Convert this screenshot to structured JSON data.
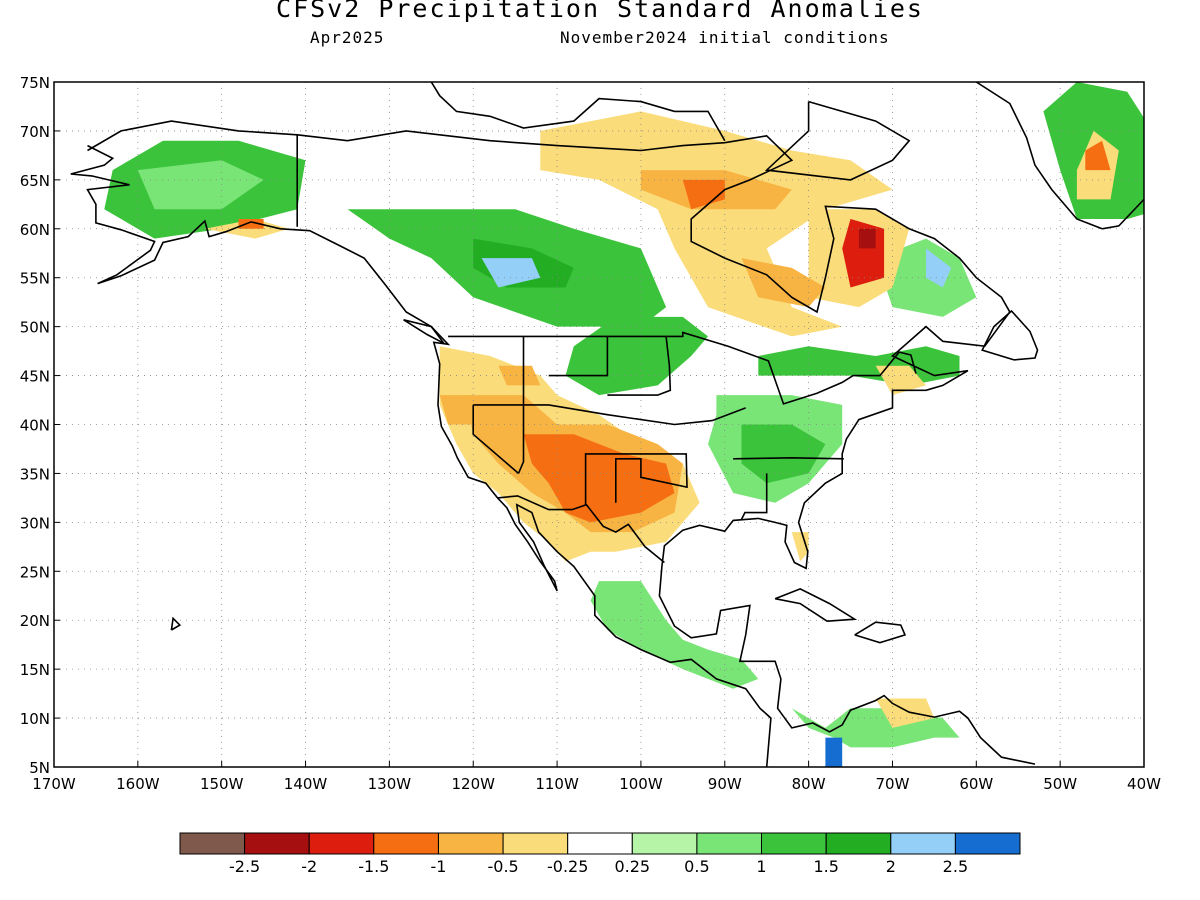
{
  "title": "CFSv2 Precipitation Standard Anomalies",
  "valid_month": "Apr2025",
  "initial_conditions": "November2024 initial conditions",
  "map": {
    "lon_range": [
      -170,
      -40
    ],
    "lat_range": [
      5,
      75
    ],
    "lon_ticks": [
      {
        "value": -170,
        "label": "170W"
      },
      {
        "value": -160,
        "label": "160W"
      },
      {
        "value": -150,
        "label": "150W"
      },
      {
        "value": -140,
        "label": "140W"
      },
      {
        "value": -130,
        "label": "130W"
      },
      {
        "value": -120,
        "label": "120W"
      },
      {
        "value": -110,
        "label": "110W"
      },
      {
        "value": -100,
        "label": "100W"
      },
      {
        "value": -90,
        "label": "90W"
      },
      {
        "value": -80,
        "label": "80W"
      },
      {
        "value": -70,
        "label": "70W"
      },
      {
        "value": -60,
        "label": "60W"
      },
      {
        "value": -50,
        "label": "50W"
      },
      {
        "value": -40,
        "label": "40W"
      }
    ],
    "lat_ticks": [
      {
        "value": 5,
        "label": "5N"
      },
      {
        "value": 10,
        "label": "10N"
      },
      {
        "value": 15,
        "label": "15N"
      },
      {
        "value": 20,
        "label": "20N"
      },
      {
        "value": 25,
        "label": "25N"
      },
      {
        "value": 30,
        "label": "30N"
      },
      {
        "value": 35,
        "label": "35N"
      },
      {
        "value": 40,
        "label": "40N"
      },
      {
        "value": 45,
        "label": "45N"
      },
      {
        "value": 50,
        "label": "50N"
      },
      {
        "value": 55,
        "label": "55N"
      },
      {
        "value": 60,
        "label": "60N"
      },
      {
        "value": 65,
        "label": "65N"
      },
      {
        "value": 70,
        "label": "70N"
      },
      {
        "value": 75,
        "label": "75N"
      }
    ],
    "land_color": "#ffffff",
    "coast_color": "#000000"
  },
  "legend": {
    "colors": [
      "#7f5a4c",
      "#a50f0f",
      "#dd1e0f",
      "#f66e12",
      "#f8b443",
      "#fbdc7a",
      "#ffffff",
      "#b6f5a8",
      "#7ae577",
      "#3bc33b",
      "#22ad22",
      "#94cff7",
      "#166dd1"
    ],
    "labels": [
      "-2.5",
      "-2",
      "-1.5",
      "-1",
      "-0.5",
      "-0.25",
      "0.25",
      "0.5",
      "1",
      "1.5",
      "2",
      "2.5"
    ]
  },
  "anomaly_regions": [
    {
      "level": 9,
      "points": [
        [
          -163,
          66
        ],
        [
          -157,
          69
        ],
        [
          -148,
          69
        ],
        [
          -140,
          67
        ],
        [
          -141,
          62
        ],
        [
          -150,
          60
        ],
        [
          -158,
          59
        ],
        [
          -164,
          62
        ]
      ]
    },
    {
      "level": 8,
      "points": [
        [
          -160,
          66
        ],
        [
          -150,
          67
        ],
        [
          -145,
          65
        ],
        [
          -150,
          62
        ],
        [
          -158,
          62
        ]
      ]
    },
    {
      "level": 9,
      "points": [
        [
          -135,
          62
        ],
        [
          -125,
          62
        ],
        [
          -115,
          62
        ],
        [
          -108,
          60
        ],
        [
          -100,
          58
        ],
        [
          -97,
          52
        ],
        [
          -100,
          50
        ],
        [
          -110,
          50
        ],
        [
          -120,
          53
        ],
        [
          -125,
          57
        ],
        [
          -130,
          59
        ]
      ]
    },
    {
      "level": 10,
      "points": [
        [
          -120,
          59
        ],
        [
          -113,
          58
        ],
        [
          -108,
          56
        ],
        [
          -109,
          54
        ],
        [
          -116,
          54
        ],
        [
          -120,
          56
        ]
      ]
    },
    {
      "level": 11,
      "points": [
        [
          -119,
          57
        ],
        [
          -113,
          57
        ],
        [
          -112,
          55
        ],
        [
          -117,
          54
        ]
      ]
    },
    {
      "level": 9,
      "points": [
        [
          -103,
          51
        ],
        [
          -95,
          51
        ],
        [
          -92,
          49
        ],
        [
          -94,
          47
        ],
        [
          -98,
          44
        ],
        [
          -105,
          43
        ],
        [
          -109,
          45
        ],
        [
          -108,
          48
        ]
      ]
    },
    {
      "level": 8,
      "points": [
        [
          -91,
          43
        ],
        [
          -82,
          43
        ],
        [
          -76,
          42
        ],
        [
          -76,
          38
        ],
        [
          -80,
          34
        ],
        [
          -84,
          32
        ],
        [
          -89,
          33
        ],
        [
          -92,
          38
        ],
        [
          -91,
          41
        ]
      ]
    },
    {
      "level": 9,
      "points": [
        [
          -88,
          40
        ],
        [
          -82,
          40
        ],
        [
          -78,
          38
        ],
        [
          -80,
          35
        ],
        [
          -85,
          34
        ],
        [
          -88,
          36
        ]
      ]
    },
    {
      "level": 9,
      "points": [
        [
          -86,
          47
        ],
        [
          -80,
          48
        ],
        [
          -72,
          47
        ],
        [
          -66,
          48
        ],
        [
          -62,
          47
        ],
        [
          -62,
          45
        ],
        [
          -68,
          44
        ],
        [
          -75,
          45
        ],
        [
          -82,
          45
        ],
        [
          -86,
          45
        ]
      ]
    },
    {
      "level": 8,
      "points": [
        [
          -72,
          57
        ],
        [
          -66,
          59
        ],
        [
          -62,
          57
        ],
        [
          -60,
          53
        ],
        [
          -64,
          51
        ],
        [
          -70,
          52
        ]
      ]
    },
    {
      "level": 11,
      "points": [
        [
          -66,
          58
        ],
        [
          -63,
          56
        ],
        [
          -64,
          54
        ],
        [
          -66,
          55
        ]
      ]
    },
    {
      "level": 8,
      "points": [
        [
          -105,
          24
        ],
        [
          -100,
          24
        ],
        [
          -97,
          20
        ],
        [
          -95,
          18
        ],
        [
          -92,
          17
        ],
        [
          -88,
          16
        ],
        [
          -86,
          14
        ],
        [
          -89,
          13
        ],
        [
          -95,
          15
        ],
        [
          -100,
          17
        ],
        [
          -104,
          19
        ],
        [
          -106,
          22
        ]
      ]
    },
    {
      "level": 8,
      "points": [
        [
          -84,
          13
        ],
        [
          -80,
          9
        ],
        [
          -77,
          8
        ],
        [
          -75,
          7
        ],
        [
          -70,
          7
        ],
        [
          -65,
          8
        ],
        [
          -62,
          8
        ],
        [
          -64,
          10
        ],
        [
          -70,
          11
        ],
        [
          -75,
          11
        ],
        [
          -78,
          9
        ],
        [
          -82,
          11
        ]
      ]
    },
    {
      "level": 12,
      "points": [
        [
          -78,
          8
        ],
        [
          -76,
          8
        ],
        [
          -76,
          5
        ],
        [
          -78,
          5
        ]
      ]
    },
    {
      "level": 9,
      "points": [
        [
          -48,
          61
        ],
        [
          -42,
          61
        ],
        [
          -38,
          62
        ],
        [
          -39,
          70
        ],
        [
          -42,
          74
        ],
        [
          -48,
          75
        ],
        [
          -52,
          72
        ],
        [
          -50,
          66
        ]
      ]
    },
    {
      "level": 5,
      "points": [
        [
          -124,
          48
        ],
        [
          -118,
          47
        ],
        [
          -112,
          45
        ],
        [
          -110,
          43
        ],
        [
          -105,
          41
        ],
        [
          -100,
          38
        ],
        [
          -95,
          36
        ],
        [
          -93,
          32
        ],
        [
          -97,
          28
        ],
        [
          -103,
          27
        ],
        [
          -106,
          27
        ],
        [
          -109,
          26
        ],
        [
          -111,
          28
        ],
        [
          -114,
          30
        ],
        [
          -117,
          33
        ],
        [
          -120,
          35
        ],
        [
          -122,
          38
        ],
        [
          -124,
          42
        ]
      ]
    },
    {
      "level": 4,
      "points": [
        [
          -121,
          43
        ],
        [
          -114,
          43
        ],
        [
          -110,
          40
        ],
        [
          -104,
          40
        ],
        [
          -98,
          38
        ],
        [
          -95,
          36
        ],
        [
          -96,
          31
        ],
        [
          -101,
          29
        ],
        [
          -106,
          29
        ],
        [
          -109,
          31
        ],
        [
          -113,
          33
        ],
        [
          -117,
          36
        ],
        [
          -120,
          39
        ]
      ]
    },
    {
      "level": 3,
      "points": [
        [
          -114,
          39
        ],
        [
          -108,
          39
        ],
        [
          -102,
          37
        ],
        [
          -97,
          36
        ],
        [
          -96,
          33
        ],
        [
          -100,
          31
        ],
        [
          -106,
          30
        ],
        [
          -109,
          31
        ],
        [
          -111,
          34
        ],
        [
          -113,
          36
        ]
      ]
    },
    {
      "level": 4,
      "points": [
        [
          -124,
          43
        ],
        [
          -120,
          43
        ],
        [
          -120,
          40
        ],
        [
          -123,
          40
        ]
      ]
    },
    {
      "level": 5,
      "points": [
        [
          -112,
          70
        ],
        [
          -100,
          72
        ],
        [
          -90,
          70
        ],
        [
          -82,
          68
        ],
        [
          -75,
          67
        ],
        [
          -70,
          64
        ],
        [
          -78,
          62
        ],
        [
          -85,
          58
        ],
        [
          -82,
          52
        ],
        [
          -76,
          50
        ],
        [
          -82,
          49
        ],
        [
          -92,
          52
        ],
        [
          -96,
          58
        ],
        [
          -98,
          62
        ],
        [
          -105,
          65
        ],
        [
          -112,
          66
        ]
      ]
    },
    {
      "level": 4,
      "points": [
        [
          -100,
          66
        ],
        [
          -90,
          66
        ],
        [
          -82,
          64
        ],
        [
          -84,
          62
        ],
        [
          -94,
          62
        ],
        [
          -100,
          64
        ]
      ]
    },
    {
      "level": 3,
      "points": [
        [
          -95,
          65
        ],
        [
          -90,
          65
        ],
        [
          -90,
          63
        ],
        [
          -94,
          62
        ]
      ]
    },
    {
      "level": 5,
      "points": [
        [
          -80,
          62
        ],
        [
          -72,
          62
        ],
        [
          -68,
          60
        ],
        [
          -70,
          54
        ],
        [
          -74,
          52
        ],
        [
          -80,
          53
        ]
      ]
    },
    {
      "level": 2,
      "points": [
        [
          -75,
          61
        ],
        [
          -71,
          60
        ],
        [
          -71,
          55
        ],
        [
          -75,
          54
        ],
        [
          -76,
          58
        ]
      ]
    },
    {
      "level": 1,
      "points": [
        [
          -74,
          60
        ],
        [
          -72,
          60
        ],
        [
          -72,
          58
        ],
        [
          -74,
          58
        ]
      ]
    },
    {
      "level": 4,
      "points": [
        [
          -88,
          57
        ],
        [
          -82,
          56
        ],
        [
          -78,
          54
        ],
        [
          -80,
          52
        ],
        [
          -86,
          53
        ]
      ]
    },
    {
      "level": 5,
      "points": [
        [
          -48,
          63
        ],
        [
          -44,
          63
        ],
        [
          -43,
          68
        ],
        [
          -46,
          70
        ],
        [
          -48,
          66
        ]
      ]
    },
    {
      "level": 3,
      "points": [
        [
          -47,
          66
        ],
        [
          -44,
          66
        ],
        [
          -45,
          69
        ],
        [
          -47,
          68
        ]
      ]
    },
    {
      "level": 5,
      "points": [
        [
          -152,
          60
        ],
        [
          -146,
          61
        ],
        [
          -142,
          60
        ],
        [
          -146,
          59
        ]
      ]
    },
    {
      "level": 3,
      "points": [
        [
          -148,
          61
        ],
        [
          -145,
          61
        ],
        [
          -145,
          60
        ],
        [
          -148,
          60
        ]
      ]
    },
    {
      "level": 5,
      "points": [
        [
          -82,
          29
        ],
        [
          -80,
          29
        ],
        [
          -80,
          27
        ],
        [
          -81,
          26
        ]
      ]
    },
    {
      "level": 4,
      "points": [
        [
          -117,
          46
        ],
        [
          -113,
          46
        ],
        [
          -112,
          44
        ],
        [
          -116,
          44
        ]
      ]
    },
    {
      "level": 5,
      "points": [
        [
          -72,
          46
        ],
        [
          -68,
          46
        ],
        [
          -66,
          44
        ],
        [
          -70,
          43
        ]
      ]
    },
    {
      "level": 5,
      "points": [
        [
          -72,
          12
        ],
        [
          -66,
          12
        ],
        [
          -65,
          10
        ],
        [
          -70,
          9
        ]
      ]
    }
  ]
}
